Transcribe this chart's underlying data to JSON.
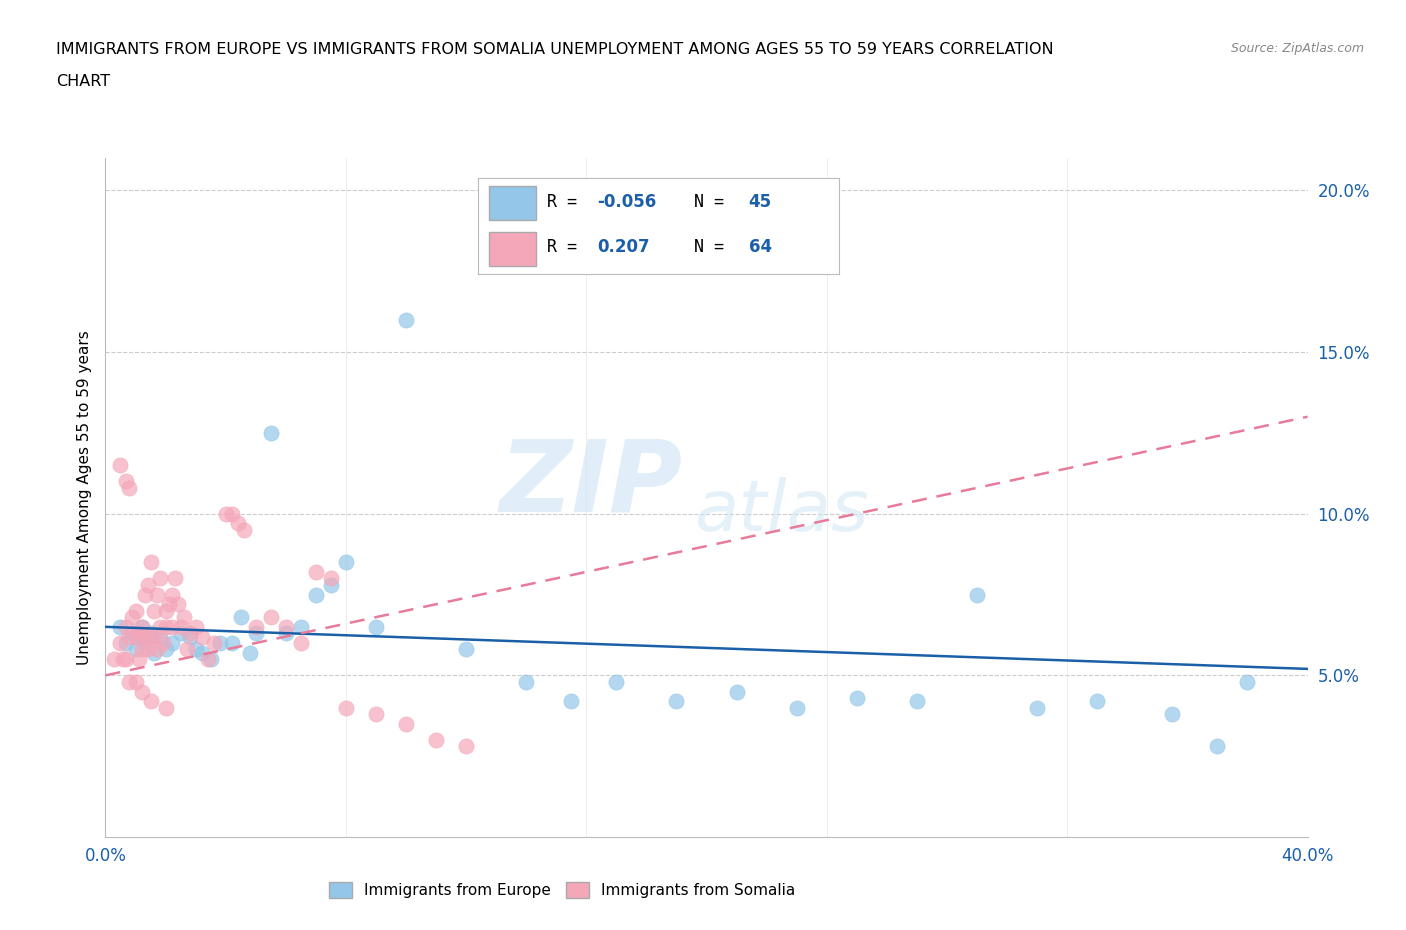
{
  "title_line1": "IMMIGRANTS FROM EUROPE VS IMMIGRANTS FROM SOMALIA UNEMPLOYMENT AMONG AGES 55 TO 59 YEARS CORRELATION",
  "title_line2": "CHART",
  "source": "Source: ZipAtlas.com",
  "ylabel": "Unemployment Among Ages 55 to 59 years",
  "xlim": [
    0.0,
    0.4
  ],
  "ylim": [
    0.0,
    0.21
  ],
  "yticks_right": [
    0.05,
    0.1,
    0.15,
    0.2
  ],
  "ytick_right_labels": [
    "5.0%",
    "10.0%",
    "15.0%",
    "20.0%"
  ],
  "grid_color": "#cccccc",
  "background_color": "#ffffff",
  "europe_color": "#93c6e8",
  "somalia_color": "#f4a7b9",
  "europe_line_color": "#1a5fa8",
  "somalia_line_color": "#e87a9a",
  "legend_R_europe": "-0.056",
  "legend_N_europe": "45",
  "legend_R_somalia": "0.207",
  "legend_N_somalia": "64",
  "watermark_zip": "ZIP",
  "watermark_atlas": "atlas",
  "europe_x": [
    0.005,
    0.007,
    0.009,
    0.01,
    0.011,
    0.012,
    0.013,
    0.015,
    0.016,
    0.018,
    0.02,
    0.022,
    0.025,
    0.028,
    0.03,
    0.032,
    0.035,
    0.038,
    0.042,
    0.045,
    0.048,
    0.05,
    0.055,
    0.06,
    0.065,
    0.07,
    0.075,
    0.08,
    0.09,
    0.1,
    0.12,
    0.14,
    0.155,
    0.17,
    0.19,
    0.21,
    0.23,
    0.25,
    0.27,
    0.29,
    0.31,
    0.33,
    0.355,
    0.37,
    0.38
  ],
  "europe_y": [
    0.065,
    0.06,
    0.063,
    0.058,
    0.062,
    0.065,
    0.06,
    0.063,
    0.057,
    0.062,
    0.058,
    0.06,
    0.063,
    0.062,
    0.058,
    0.057,
    0.055,
    0.06,
    0.06,
    0.068,
    0.057,
    0.063,
    0.125,
    0.063,
    0.065,
    0.075,
    0.078,
    0.085,
    0.065,
    0.16,
    0.058,
    0.048,
    0.042,
    0.048,
    0.042,
    0.045,
    0.04,
    0.043,
    0.042,
    0.075,
    0.04,
    0.042,
    0.038,
    0.028,
    0.048
  ],
  "somalia_x": [
    0.003,
    0.005,
    0.006,
    0.007,
    0.007,
    0.008,
    0.008,
    0.009,
    0.01,
    0.01,
    0.011,
    0.011,
    0.012,
    0.012,
    0.013,
    0.013,
    0.014,
    0.014,
    0.015,
    0.015,
    0.016,
    0.016,
    0.017,
    0.017,
    0.018,
    0.018,
    0.019,
    0.02,
    0.02,
    0.021,
    0.022,
    0.022,
    0.023,
    0.024,
    0.025,
    0.026,
    0.027,
    0.028,
    0.03,
    0.032,
    0.034,
    0.036,
    0.04,
    0.042,
    0.044,
    0.046,
    0.05,
    0.055,
    0.06,
    0.065,
    0.07,
    0.075,
    0.08,
    0.09,
    0.1,
    0.11,
    0.12,
    0.005,
    0.007,
    0.008,
    0.01,
    0.012,
    0.015,
    0.02
  ],
  "somalia_y": [
    0.055,
    0.06,
    0.055,
    0.065,
    0.055,
    0.062,
    0.048,
    0.068,
    0.07,
    0.062,
    0.063,
    0.055,
    0.058,
    0.065,
    0.075,
    0.062,
    0.078,
    0.058,
    0.085,
    0.062,
    0.062,
    0.07,
    0.075,
    0.058,
    0.08,
    0.065,
    0.06,
    0.065,
    0.07,
    0.072,
    0.075,
    0.065,
    0.08,
    0.072,
    0.065,
    0.068,
    0.058,
    0.063,
    0.065,
    0.062,
    0.055,
    0.06,
    0.1,
    0.1,
    0.097,
    0.095,
    0.065,
    0.068,
    0.065,
    0.06,
    0.082,
    0.08,
    0.04,
    0.038,
    0.035,
    0.03,
    0.028,
    0.115,
    0.11,
    0.108,
    0.048,
    0.045,
    0.042,
    0.04
  ],
  "europe_trend": [
    0.065,
    0.052
  ],
  "somalia_trend": [
    0.05,
    0.13
  ]
}
